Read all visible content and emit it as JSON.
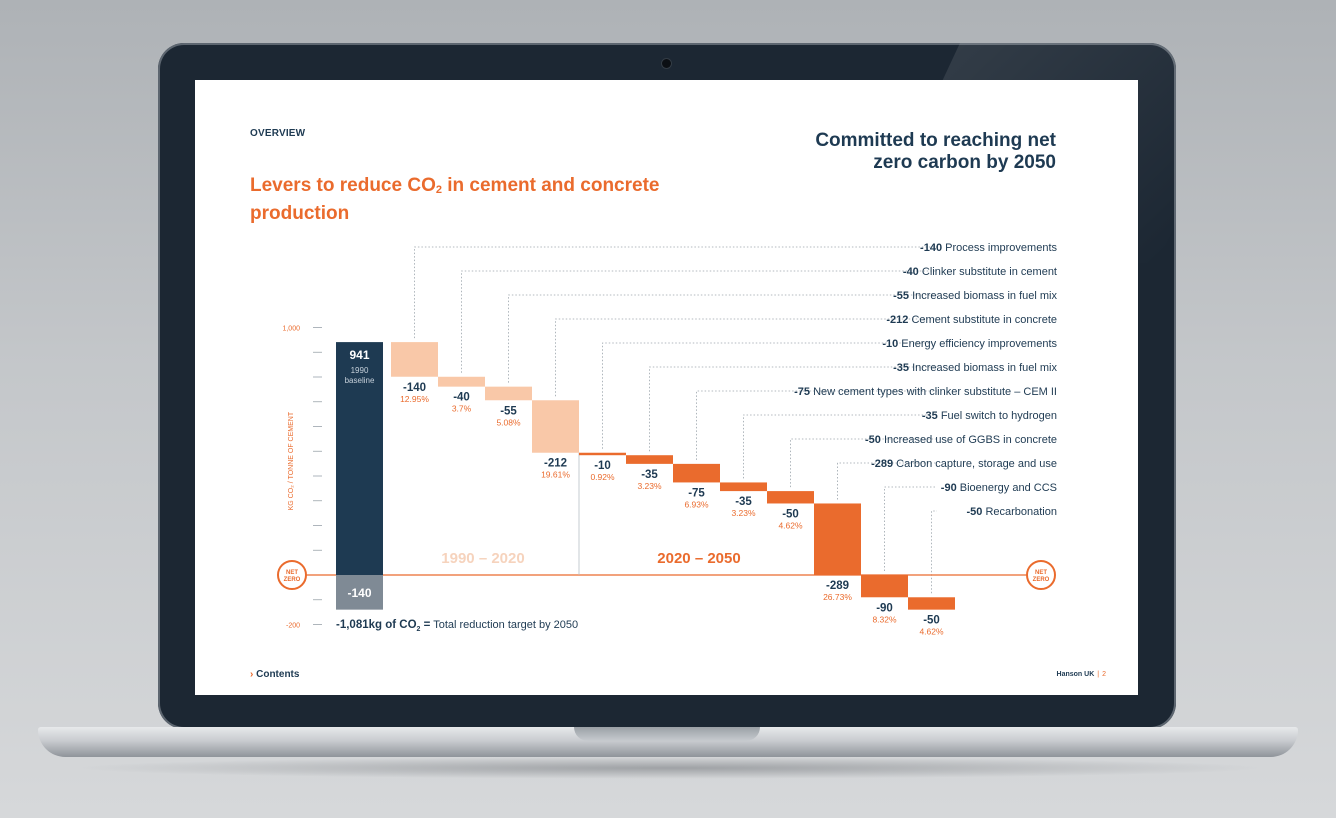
{
  "colors": {
    "navy": "#1e3a52",
    "orange": "#ea6b2d",
    "peach": "#f9c8a8",
    "grey_bar": "#7f8a95"
  },
  "page": {
    "section": "OVERVIEW",
    "title_pre": "Levers to reduce CO",
    "title_sub": "2",
    "title_post": " in cement and concrete production",
    "headline": "Committed to reaching net zero carbon by 2050",
    "contents_link": "Contents",
    "footer_brand": "Hanson UK",
    "footer_page": "2"
  },
  "chart_data": {
    "type": "waterfall",
    "ylabel": "KG CO₂ / TONNE OF CEMENT",
    "yticks": [
      "1,000",
      "-200"
    ],
    "ylim": [
      -200,
      1000
    ],
    "baseline": {
      "value": 941,
      "value_label": "941",
      "label": "1990 baseline"
    },
    "zero_label": "NET ZERO",
    "residual": {
      "value": -140,
      "label": "-140"
    },
    "total_text_value": "-1,081kg of CO",
    "total_text_sub": "2",
    "total_text_eq": "=",
    "total_text_rest": " Total reduction target by 2050",
    "periods": [
      "1990 – 2020",
      "2020 – 2050"
    ],
    "steps": [
      {
        "label": "Process improvements",
        "value": -140,
        "value_label": "-140",
        "pct": "12.95%",
        "period": 0
      },
      {
        "label": "Clinker substitute in cement",
        "value": -40,
        "value_label": "-40",
        "pct": "3.7%",
        "period": 0
      },
      {
        "label": "Increased biomass in fuel mix",
        "value": -55,
        "value_label": "-55",
        "pct": "5.08%",
        "period": 0
      },
      {
        "label": "Cement substitute in concrete",
        "value": -212,
        "value_label": "-212",
        "pct": "19.61%",
        "period": 0
      },
      {
        "label": "Energy efficiency improvements",
        "value": -10,
        "value_label": "-10",
        "pct": "0.92%",
        "period": 1
      },
      {
        "label": "Increased biomass in fuel mix",
        "value": -35,
        "value_label": "-35",
        "pct": "3.23%",
        "period": 1
      },
      {
        "label": "New cement types with clinker substitute – CEM II",
        "value": -75,
        "value_label": "-75",
        "pct": "6.93%",
        "period": 1
      },
      {
        "label": "Fuel switch to hydrogen",
        "value": -35,
        "value_label": "-35",
        "pct": "3.23%",
        "period": 1
      },
      {
        "label": "Increased use of GGBS in concrete",
        "value": -50,
        "value_label": "-50",
        "pct": "4.62%",
        "period": 1
      },
      {
        "label": "Carbon capture, storage and use",
        "value": -289,
        "value_label": "-289",
        "pct": "26.73%",
        "period": 1
      },
      {
        "label": "Bioenergy and CCS",
        "value": -90,
        "value_label": "-90",
        "pct": "8.32%",
        "period": 1
      },
      {
        "label": "Recarbonation",
        "value": -50,
        "value_label": "-50",
        "pct": "4.62%",
        "period": 1
      }
    ]
  }
}
